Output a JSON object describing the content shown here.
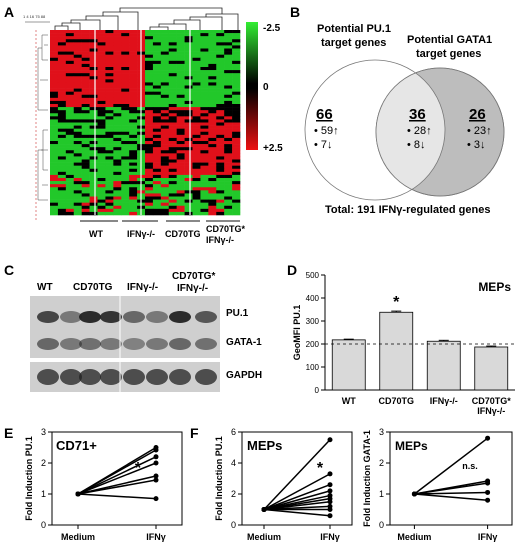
{
  "panels": {
    "a": {
      "letter": "A",
      "scale_labels": [
        "-2.5",
        "0",
        "+2.5"
      ],
      "groups": [
        "WT",
        "IFNγ-/-",
        "CD70TG",
        "CD70TG*",
        "IFNγ-/-"
      ],
      "colors": {
        "high": "#e0101a",
        "low": "#22c82a",
        "mid": "#000000"
      }
    },
    "b": {
      "letter": "B",
      "left_title": [
        "Potential PU.1",
        "target genes"
      ],
      "right_title": [
        "Potential GATA1",
        "target genes"
      ],
      "left": {
        "total": "66",
        "up": "• 59↑",
        "down": "• 7↓"
      },
      "overlap": {
        "total": "36",
        "up": "• 28↑",
        "down": "• 8↓"
      },
      "right": {
        "total": "26",
        "up": "• 23↑",
        "down": "• 3↓"
      },
      "footer": "Total: 191 IFNγ-regulated genes"
    },
    "c": {
      "letter": "C",
      "lanes": [
        "WT",
        "CD70TG",
        "IFNγ-/-",
        "CD70TG*",
        "IFNγ-/-"
      ],
      "bands": [
        "PU.1",
        "GATA-1",
        "GAPDH"
      ]
    },
    "d": {
      "letter": "D"
    },
    "e": {
      "letter": "E"
    },
    "f": {
      "letter": "F"
    }
  },
  "chart_data": [
    {
      "id": "D",
      "type": "bar",
      "title": "MEPs",
      "ylabel": "GeoMFI PU.1",
      "categories": [
        "WT",
        "CD70TG",
        "IFNγ-/-",
        "CD70TG*\nIFNγ-/-"
      ],
      "values": [
        218,
        338,
        212,
        187
      ],
      "errors": [
        3,
        5,
        4,
        4
      ],
      "ylim": [
        0,
        500
      ],
      "yticks": [
        0,
        100,
        200,
        300,
        400,
        500
      ],
      "reference_line": 200,
      "annotation": "*",
      "grid": false
    },
    {
      "id": "E",
      "type": "line",
      "title": "CD71+",
      "ylabel": "Fold Induction PU.1",
      "x": [
        "Medium",
        "IFNγ"
      ],
      "ylim": [
        0,
        3
      ],
      "yticks": [
        0,
        1,
        2,
        3
      ],
      "annotation": "*",
      "series": [
        {
          "values": [
            1,
            2.5
          ]
        },
        {
          "values": [
            1,
            2.42
          ]
        },
        {
          "values": [
            1,
            2.2
          ]
        },
        {
          "values": [
            1,
            2.0
          ]
        },
        {
          "values": [
            1,
            1.58
          ]
        },
        {
          "values": [
            1,
            1.45
          ]
        },
        {
          "values": [
            1,
            0.85
          ]
        }
      ]
    },
    {
      "id": "F1",
      "type": "line",
      "title": "MEPs",
      "ylabel": "Fold Induction PU.1",
      "x": [
        "Medium",
        "IFNγ"
      ],
      "ylim": [
        0,
        6
      ],
      "yticks": [
        0,
        2,
        4,
        6
      ],
      "annotation": "*",
      "series": [
        {
          "values": [
            1,
            5.5
          ]
        },
        {
          "values": [
            1,
            3.3
          ]
        },
        {
          "values": [
            1,
            2.6
          ]
        },
        {
          "values": [
            1,
            2.2
          ]
        },
        {
          "values": [
            1,
            1.9
          ]
        },
        {
          "values": [
            1,
            1.7
          ]
        },
        {
          "values": [
            1,
            1.5
          ]
        },
        {
          "values": [
            1,
            1.2
          ]
        },
        {
          "values": [
            1,
            1.0
          ]
        },
        {
          "values": [
            1,
            0.6
          ]
        }
      ]
    },
    {
      "id": "F2",
      "type": "line",
      "title": "MEPs",
      "ylabel": "Fold Induction GATA-1",
      "x": [
        "Medium",
        "IFNγ"
      ],
      "ylim": [
        0,
        3
      ],
      "yticks": [
        0,
        1,
        2,
        3
      ],
      "annotation": "n.s.",
      "series": [
        {
          "values": [
            1,
            2.8
          ]
        },
        {
          "values": [
            1,
            1.42
          ]
        },
        {
          "values": [
            1,
            1.35
          ]
        },
        {
          "values": [
            1,
            1.05
          ]
        },
        {
          "values": [
            1,
            0.8
          ]
        }
      ]
    }
  ]
}
